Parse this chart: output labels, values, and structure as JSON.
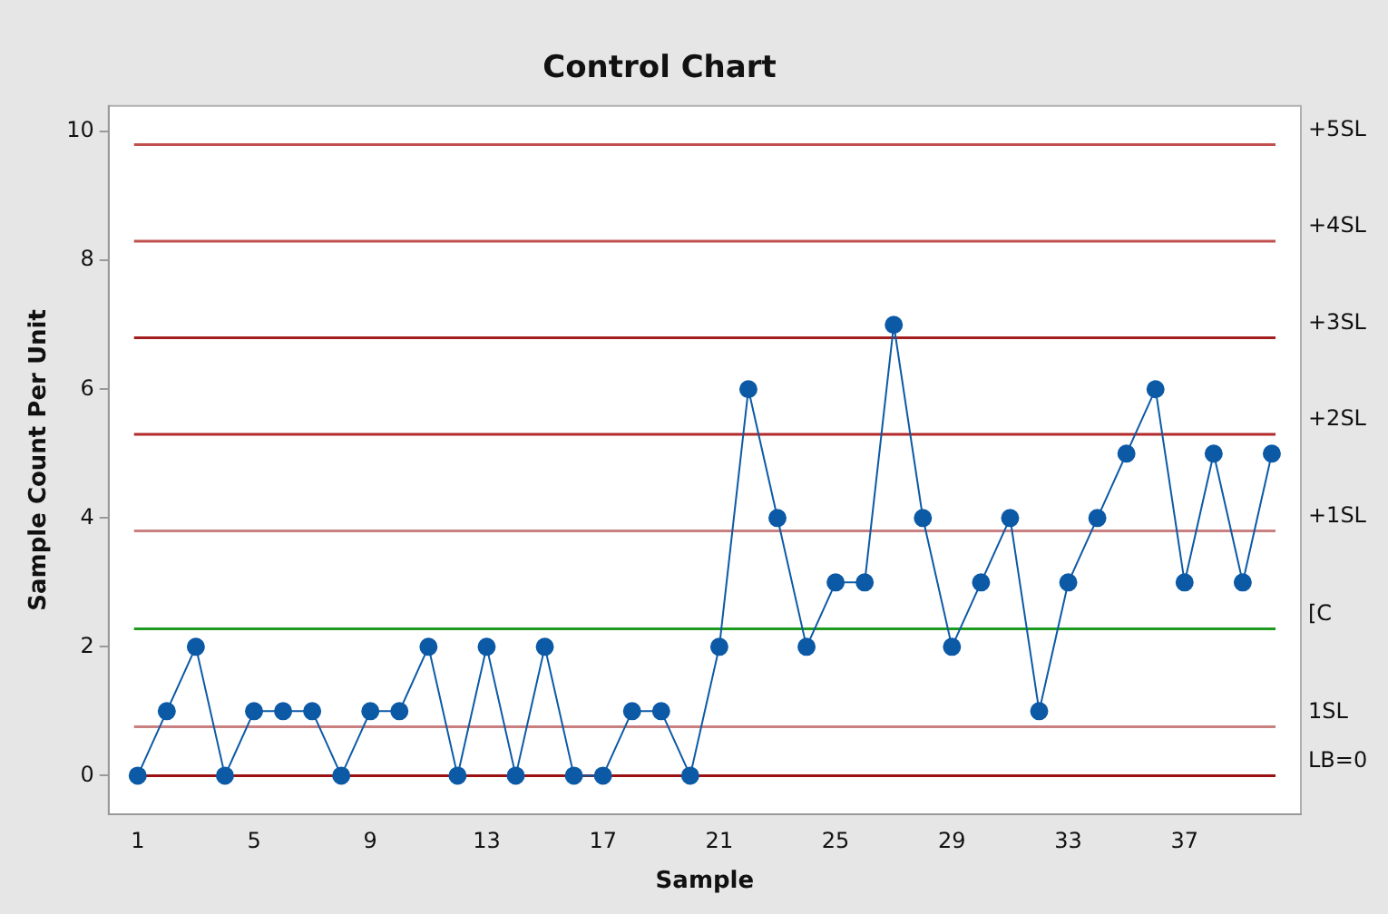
{
  "chart_data": {
    "type": "line",
    "title": "Control Chart",
    "xlabel": "Sample",
    "ylabel": "Sample Count Per Unit",
    "x": [
      1,
      2,
      3,
      4,
      5,
      6,
      7,
      8,
      9,
      10,
      11,
      12,
      13,
      14,
      15,
      16,
      17,
      18,
      19,
      20,
      21,
      22,
      23,
      24,
      25,
      26,
      27,
      28,
      29,
      30,
      31,
      32,
      33,
      34,
      35,
      36,
      37,
      38,
      39,
      40
    ],
    "series": [
      {
        "color": "#0c5aa6",
        "values": [
          0,
          1,
          2,
          0,
          1,
          1,
          1,
          0,
          1,
          1,
          2,
          0,
          2,
          0,
          2,
          0,
          0,
          1,
          1,
          0,
          2,
          6,
          4,
          2,
          3,
          3,
          7,
          4,
          2,
          3,
          4,
          1,
          3,
          4,
          5,
          6,
          3,
          5,
          3,
          5
        ]
      }
    ],
    "xlim": [
      0,
      41
    ],
    "xticks": [
      1,
      5,
      9,
      13,
      17,
      21,
      25,
      29,
      33,
      37
    ],
    "ylim": [
      -0.6,
      10.4
    ],
    "yticks": [
      0,
      2,
      4,
      6,
      8,
      10
    ],
    "ref_lines": [
      {
        "axis": "y",
        "value": 9.8,
        "label": "+5SL",
        "color": "#c0504d"
      },
      {
        "axis": "y",
        "value": 8.3,
        "label": "+4SL",
        "color": "#c0504d"
      },
      {
        "axis": "y",
        "value": 6.8,
        "label": "+3SL",
        "color": "#a31f1f"
      },
      {
        "axis": "y",
        "value": 5.3,
        "label": "+2SL",
        "color": "#b22a2a"
      },
      {
        "axis": "y",
        "value": 3.8,
        "label": "+1SL",
        "color": "#c88080"
      },
      {
        "axis": "y",
        "value": 2.28,
        "label": "[C",
        "color": "#1e9a1e"
      },
      {
        "axis": "y",
        "value": 0.76,
        "label": "1SL",
        "color": "#c88080"
      },
      {
        "axis": "y",
        "value": 0,
        "label": "LB=0",
        "color": "#9b1111"
      }
    ],
    "grid": false,
    "legend": false,
    "marker": "circle",
    "line_style": "solid"
  }
}
